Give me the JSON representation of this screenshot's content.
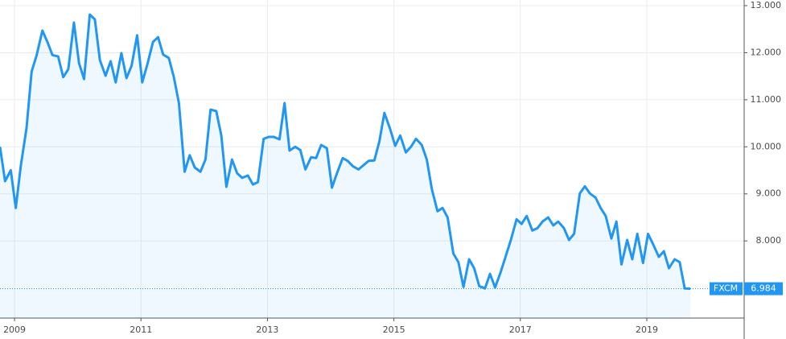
{
  "chart_data": {
    "type": "line",
    "x": [
      2008.77,
      2008.85,
      2008.94,
      2009.02,
      2009.1,
      2009.19,
      2009.27,
      2009.35,
      2009.44,
      2009.52,
      2009.6,
      2009.69,
      2009.77,
      2009.85,
      2009.94,
      2010.02,
      2010.1,
      2010.19,
      2010.27,
      2010.35,
      2010.44,
      2010.52,
      2010.6,
      2010.69,
      2010.77,
      2010.85,
      2010.94,
      2011.02,
      2011.1,
      2011.19,
      2011.27,
      2011.35,
      2011.44,
      2011.52,
      2011.6,
      2011.69,
      2011.77,
      2011.85,
      2011.94,
      2012.02,
      2012.1,
      2012.19,
      2012.27,
      2012.35,
      2012.44,
      2012.52,
      2012.6,
      2012.69,
      2012.77,
      2012.85,
      2012.94,
      2013.02,
      2013.1,
      2013.19,
      2013.27,
      2013.35,
      2013.44,
      2013.52,
      2013.6,
      2013.69,
      2013.77,
      2013.85,
      2013.94,
      2014.02,
      2014.1,
      2014.19,
      2014.27,
      2014.35,
      2014.44,
      2014.52,
      2014.6,
      2014.69,
      2014.77,
      2014.85,
      2014.94,
      2015.02,
      2015.1,
      2015.19,
      2015.27,
      2015.35,
      2015.44,
      2015.52,
      2015.6,
      2015.69,
      2015.77,
      2015.85,
      2015.94,
      2016.02,
      2016.1,
      2016.19,
      2016.27,
      2016.35,
      2016.44,
      2016.52,
      2016.6,
      2016.69,
      2016.77,
      2016.85,
      2016.94,
      2017.02,
      2017.1,
      2017.19,
      2017.27,
      2017.35,
      2017.44,
      2017.52,
      2017.6,
      2017.69,
      2017.77,
      2017.85,
      2017.94,
      2018.02,
      2018.1,
      2018.19,
      2018.27,
      2018.35,
      2018.44,
      2018.52,
      2018.6,
      2018.69,
      2018.77,
      2018.85,
      2018.94,
      2019.02,
      2019.1,
      2019.19,
      2019.27,
      2019.35,
      2019.44,
      2019.52,
      2019.6,
      2019.69
    ],
    "series": [
      {
        "name": "FXCM",
        "color": "#2196f3",
        "values": [
          10.0,
          9.27,
          9.5,
          8.7,
          9.6,
          10.4,
          11.6,
          11.95,
          12.47,
          12.23,
          11.95,
          11.92,
          11.48,
          11.65,
          12.64,
          11.78,
          11.44,
          12.81,
          12.71,
          11.84,
          11.51,
          11.82,
          11.37,
          11.99,
          11.46,
          11.72,
          12.37,
          11.37,
          11.75,
          12.23,
          12.33,
          11.96,
          11.89,
          11.48,
          10.93,
          9.47,
          9.82,
          9.56,
          9.47,
          9.73,
          10.79,
          10.76,
          10.24,
          9.15,
          9.73,
          9.44,
          9.34,
          9.39,
          9.2,
          9.25,
          10.17,
          10.21,
          10.21,
          10.16,
          10.93,
          9.92,
          10.0,
          9.93,
          9.52,
          9.78,
          9.76,
          10.04,
          9.97,
          9.13,
          9.44,
          9.76,
          9.7,
          9.59,
          9.52,
          9.61,
          9.7,
          9.71,
          10.11,
          10.72,
          10.38,
          10.02,
          10.24,
          9.88,
          10.0,
          10.17,
          10.04,
          9.73,
          9.1,
          8.63,
          8.7,
          8.5,
          7.73,
          7.55,
          7.02,
          7.61,
          7.42,
          7.04,
          6.99,
          7.3,
          7.01,
          7.34,
          7.68,
          8.02,
          8.46,
          8.36,
          8.53,
          8.22,
          8.27,
          8.41,
          8.5,
          8.33,
          8.41,
          8.27,
          8.02,
          8.15,
          9.01,
          9.16,
          9.01,
          8.92,
          8.7,
          8.53,
          8.05,
          8.41,
          7.5,
          8.02,
          7.61,
          8.15,
          7.53,
          8.15,
          7.93,
          7.66,
          7.78,
          7.42,
          7.61,
          7.55,
          6.99,
          6.984
        ]
      }
    ],
    "xlim": [
      2008.77,
      2020.54
    ],
    "ylim": [
      6.36,
      13.12
    ],
    "xticks": [
      2009,
      2011,
      2013,
      2015,
      2017,
      2019
    ],
    "yticks": [
      {
        "value": 8,
        "label": "8.000"
      },
      {
        "value": 9,
        "label": "9.000"
      },
      {
        "value": 10,
        "label": "10.000"
      },
      {
        "value": 11,
        "label": "11.000"
      },
      {
        "value": 12,
        "label": "12.000"
      },
      {
        "value": 13,
        "label": "13.000"
      }
    ],
    "grid": true
  }
}
